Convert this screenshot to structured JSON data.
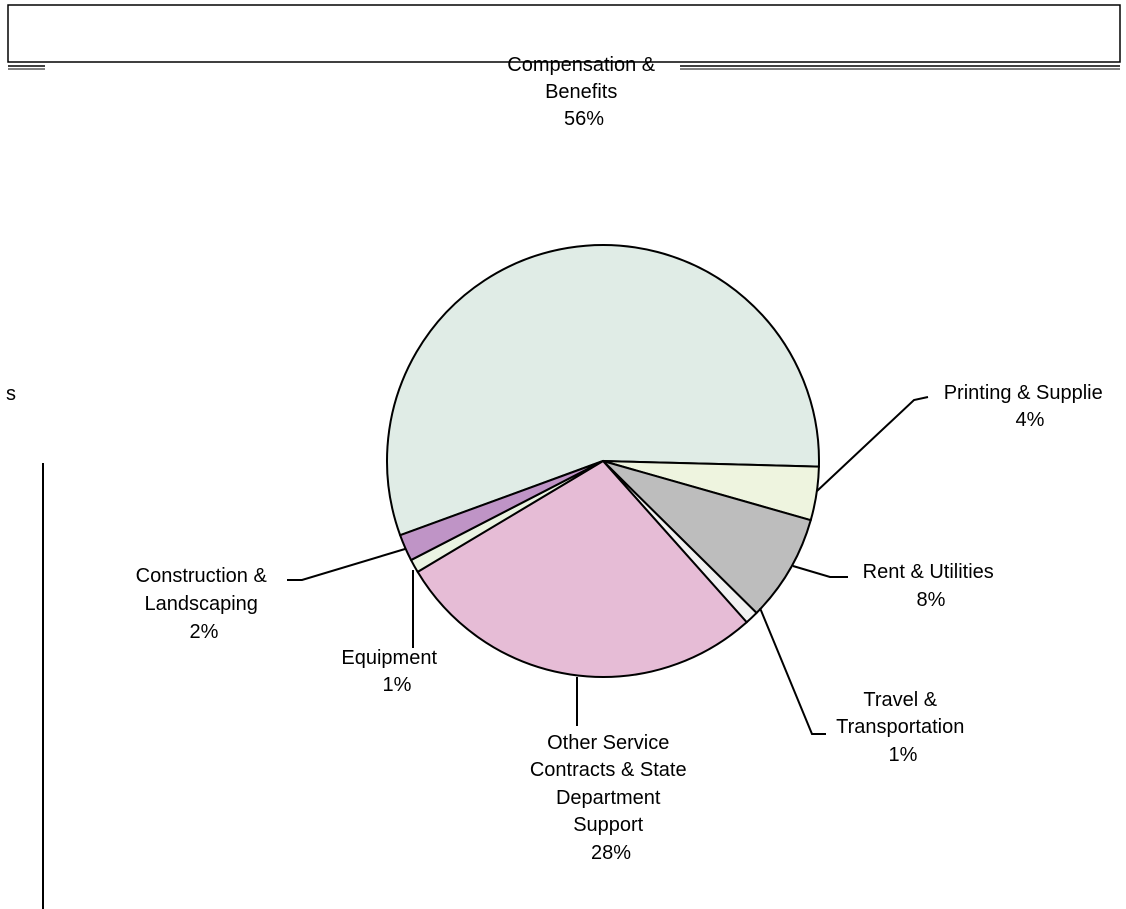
{
  "chart_data": {
    "type": "pie",
    "title": "",
    "slices": [
      {
        "label_lines": [
          "Compensation &",
          "Benefits"
        ],
        "pct_text": "56%",
        "value": 56,
        "color": "#e0ece6"
      },
      {
        "label_lines": [
          "Printing & Supplie"
        ],
        "pct_text": "4%",
        "value": 4,
        "color": "#eef4df"
      },
      {
        "label_lines": [
          "Rent & Utilities"
        ],
        "pct_text": "8%",
        "value": 8,
        "color": "#bdbdbd"
      },
      {
        "label_lines": [
          "Travel &",
          "Transportation"
        ],
        "pct_text": "1%",
        "value": 1,
        "color": "#f2f2f2"
      },
      {
        "label_lines": [
          "Other Service",
          "Contracts & State",
          "Department",
          "Support"
        ],
        "pct_text": "28%",
        "value": 28,
        "color": "#e6bcd6"
      },
      {
        "label_lines": [
          "Equipment"
        ],
        "pct_text": "1%",
        "value": 1,
        "color": "#eaf3e2"
      },
      {
        "label_lines": [
          "Construction &",
          "Landscaping"
        ],
        "pct_text": "2%",
        "value": 2,
        "color": "#bf94c6"
      }
    ],
    "edge_fragment_text": "s"
  }
}
